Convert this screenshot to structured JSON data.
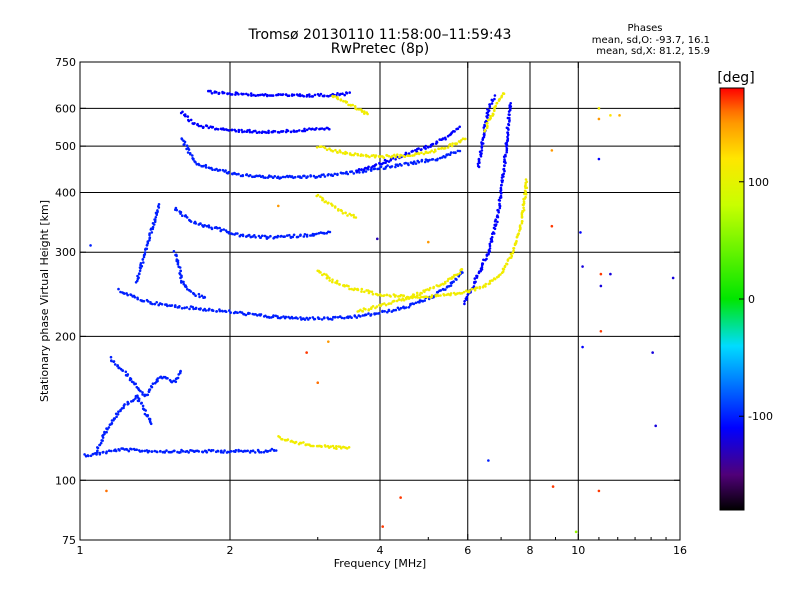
{
  "chart_data": {
    "type": "scatter",
    "title": "Tromsø 20130110 11:58:00–11:59:43",
    "subtitle": "RwPretec (8p)",
    "xlabel": "Frequency [MHz]",
    "ylabel": "Stationary phase Virtual Height [km]",
    "x_scale": "log",
    "y_scale": "log",
    "xlim": [
      1,
      16
    ],
    "ylim": [
      75,
      750
    ],
    "x_ticks": [
      1,
      2,
      4,
      6,
      8,
      10,
      16
    ],
    "x_tick_labels": [
      "1",
      "2",
      "4",
      "6",
      "8",
      "10",
      "16"
    ],
    "y_ticks": [
      75,
      100,
      200,
      300,
      400,
      500,
      600,
      750
    ],
    "y_tick_labels": [
      "75",
      "100",
      "200",
      "300",
      "400",
      "500",
      "600",
      "750"
    ],
    "grid": true,
    "phase_info": {
      "title": "Phases",
      "line_o": "mean, sd,O: -93.7, 16.1",
      "line_x": "mean, sd,X:  81.2, 15.9"
    },
    "colorbar": {
      "label": "[deg]",
      "range": [
        -180,
        180
      ],
      "ticks": [
        100,
        0,
        -100
      ],
      "tick_labels": [
        "100",
        "0",
        "-100"
      ]
    },
    "traces": [
      {
        "name": "",
        "phase": -100,
        "x": [
          1.02,
          1.05,
          1.1,
          1.2,
          1.4,
          1.7,
          2.0,
          2.3,
          2.5
        ],
        "y": [
          113,
          113,
          114,
          116,
          115,
          115,
          115,
          115,
          116
        ]
      },
      {
        "name": "",
        "phase": -100,
        "x": [
          1.08,
          1.12,
          1.2,
          1.3,
          1.4
        ],
        "y": [
          115,
          125,
          140,
          150,
          130
        ]
      },
      {
        "name": "",
        "phase": -100,
        "x": [
          1.15,
          1.25,
          1.35,
          1.45,
          1.55,
          1.6
        ],
        "y": [
          180,
          165,
          150,
          165,
          160,
          170
        ]
      },
      {
        "name": "",
        "phase": -100,
        "x": [
          1.2,
          1.3,
          1.4,
          1.5,
          1.7,
          2.0,
          2.4,
          2.8,
          3.2,
          3.6,
          4.0,
          4.5,
          5.0,
          5.5,
          5.9
        ],
        "y": [
          250,
          240,
          235,
          232,
          229,
          225,
          220,
          218,
          218,
          220,
          224,
          230,
          240,
          255,
          275
        ]
      },
      {
        "name": "",
        "phase": -100,
        "x": [
          1.3,
          1.35,
          1.4,
          1.45
        ],
        "y": [
          260,
          300,
          340,
          380
        ]
      },
      {
        "name": "",
        "phase": -100,
        "x": [
          1.55,
          1.58,
          1.6,
          1.65,
          1.7,
          1.8
        ],
        "y": [
          300,
          280,
          260,
          250,
          245,
          240
        ]
      },
      {
        "name": "",
        "phase": -100,
        "x": [
          1.55,
          1.7,
          1.9,
          2.1,
          2.4,
          2.8,
          3.2
        ],
        "y": [
          370,
          345,
          335,
          325,
          322,
          325,
          330
        ]
      },
      {
        "name": "",
        "phase": -100,
        "x": [
          1.6,
          1.7,
          1.9,
          2.1,
          2.5,
          3.0,
          3.5,
          4.0,
          4.6,
          5.2,
          5.8
        ],
        "y": [
          520,
          460,
          445,
          435,
          430,
          432,
          440,
          450,
          460,
          470,
          490
        ]
      },
      {
        "name": "",
        "phase": -110,
        "x": [
          1.6,
          1.65,
          1.7,
          1.8,
          2.0,
          2.4,
          2.8,
          3.2
        ],
        "y": [
          590,
          570,
          555,
          548,
          540,
          535,
          540,
          545
        ]
      },
      {
        "name": "",
        "phase": -110,
        "x": [
          1.8,
          2.0,
          2.3,
          2.6,
          2.9,
          3.2,
          3.5
        ],
        "y": [
          650,
          645,
          640,
          638,
          638,
          640,
          645
        ]
      },
      {
        "name": "",
        "phase": -110,
        "x": [
          3.6,
          4.0,
          4.5,
          5.0,
          5.4,
          5.8
        ],
        "y": [
          445,
          460,
          480,
          500,
          520,
          550
        ]
      },
      {
        "name": "",
        "phase": -110,
        "x": [
          5.9,
          6.1,
          6.3,
          6.6,
          6.9,
          7.1,
          7.3
        ],
        "y": [
          235,
          250,
          270,
          300,
          360,
          450,
          620
        ]
      },
      {
        "name": "",
        "phase": -110,
        "x": [
          6.3,
          6.4,
          6.5,
          6.6,
          6.8
        ],
        "y": [
          450,
          500,
          550,
          600,
          640
        ]
      },
      {
        "name": "",
        "phase": 110,
        "x": [
          2.5,
          2.7,
          3.0,
          3.3,
          3.5
        ],
        "y": [
          123,
          120,
          118,
          117,
          117
        ]
      },
      {
        "name": "",
        "phase": 110,
        "x": [
          3.0,
          3.2,
          3.5,
          4.0,
          4.5,
          5.0,
          5.5,
          6.0,
          6.5,
          7.0,
          7.4,
          7.7,
          7.9
        ],
        "y": [
          275,
          262,
          252,
          245,
          242,
          242,
          244,
          248,
          256,
          270,
          300,
          350,
          430
        ]
      },
      {
        "name": "",
        "phase": 110,
        "x": [
          3.0,
          3.2,
          3.4,
          3.6
        ],
        "y": [
          395,
          375,
          362,
          355
        ]
      },
      {
        "name": "",
        "phase": 110,
        "x": [
          3.0,
          3.2,
          3.6,
          4.0,
          4.5,
          5.0,
          5.5,
          6.0
        ],
        "y": [
          500,
          490,
          480,
          475,
          478,
          485,
          500,
          520
        ]
      },
      {
        "name": "",
        "phase": 110,
        "x": [
          3.2,
          3.4,
          3.6,
          3.8
        ],
        "y": [
          640,
          620,
          600,
          580
        ]
      },
      {
        "name": "",
        "phase": 110,
        "x": [
          3.6,
          4.0,
          4.5,
          5.0,
          5.5,
          5.9
        ],
        "y": [
          225,
          232,
          240,
          250,
          262,
          278
        ]
      },
      {
        "name": "",
        "phase": 110,
        "x": [
          6.5,
          6.7,
          6.9,
          7.1
        ],
        "y": [
          540,
          580,
          620,
          650
        ]
      }
    ],
    "scatter_points": [
      {
        "x": 1.05,
        "y": 310,
        "phase": -100
      },
      {
        "x": 1.13,
        "y": 95,
        "phase": 160
      },
      {
        "x": 2.5,
        "y": 375,
        "phase": 150
      },
      {
        "x": 2.85,
        "y": 185,
        "phase": 170
      },
      {
        "x": 3.0,
        "y": 160,
        "phase": 160
      },
      {
        "x": 3.15,
        "y": 195,
        "phase": 150
      },
      {
        "x": 3.95,
        "y": 320,
        "phase": -130
      },
      {
        "x": 4.05,
        "y": 80,
        "phase": 170
      },
      {
        "x": 4.4,
        "y": 92,
        "phase": 170
      },
      {
        "x": 5.0,
        "y": 315,
        "phase": 150
      },
      {
        "x": 6.6,
        "y": 110,
        "phase": -100
      },
      {
        "x": 8.85,
        "y": 490,
        "phase": 150
      },
      {
        "x": 8.85,
        "y": 340,
        "phase": 170
      },
      {
        "x": 8.9,
        "y": 97,
        "phase": 170
      },
      {
        "x": 9.9,
        "y": 78,
        "phase": 60
      },
      {
        "x": 10.1,
        "y": 330,
        "phase": -110
      },
      {
        "x": 10.2,
        "y": 280,
        "phase": -120
      },
      {
        "x": 10.2,
        "y": 190,
        "phase": -110
      },
      {
        "x": 11.0,
        "y": 600,
        "phase": 110
      },
      {
        "x": 11.0,
        "y": 570,
        "phase": 150
      },
      {
        "x": 11.0,
        "y": 470,
        "phase": -110
      },
      {
        "x": 11.1,
        "y": 270,
        "phase": 170
      },
      {
        "x": 11.1,
        "y": 255,
        "phase": -120
      },
      {
        "x": 11.1,
        "y": 205,
        "phase": 170
      },
      {
        "x": 11.0,
        "y": 95,
        "phase": 170
      },
      {
        "x": 11.6,
        "y": 580,
        "phase": 120
      },
      {
        "x": 11.6,
        "y": 270,
        "phase": -120
      },
      {
        "x": 12.1,
        "y": 580,
        "phase": 140
      },
      {
        "x": 14.1,
        "y": 185,
        "phase": -120
      },
      {
        "x": 14.3,
        "y": 130,
        "phase": -120
      },
      {
        "x": 15.5,
        "y": 265,
        "phase": -120
      }
    ]
  }
}
